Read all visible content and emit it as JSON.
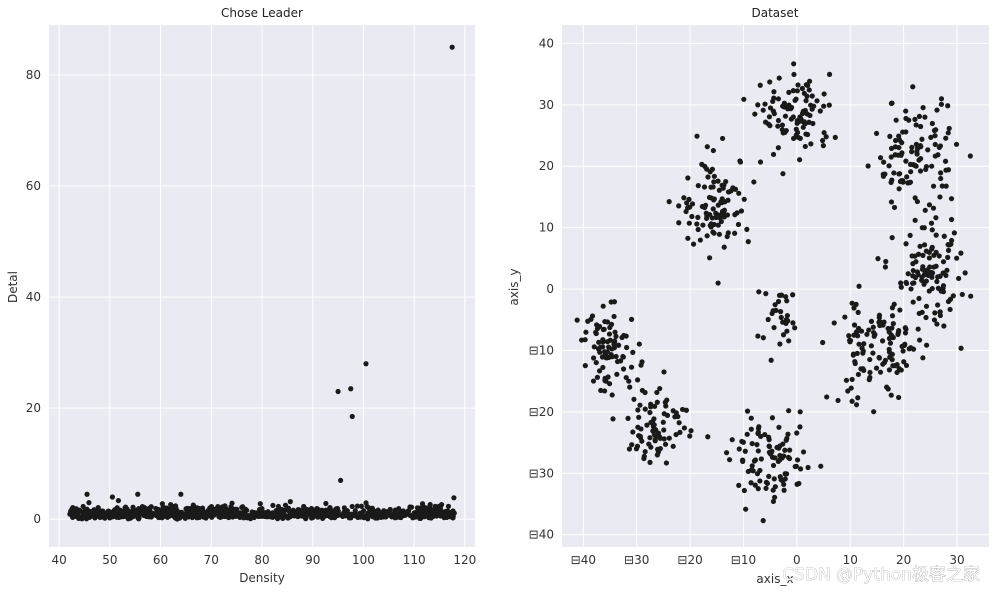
{
  "chart_data": [
    {
      "type": "scatter",
      "title": "Chose Leader",
      "xlabel": "Density",
      "ylabel": "Detal",
      "xlim": [
        38,
        122
      ],
      "ylim": [
        -5,
        89
      ],
      "xticks": [
        40,
        50,
        60,
        70,
        80,
        90,
        100,
        110,
        120
      ],
      "yticks": [
        0,
        20,
        40,
        60,
        80
      ],
      "xtick_labels": [
        "40",
        "50",
        "60",
        "70",
        "80",
        "90",
        "100",
        "110",
        "120"
      ],
      "ytick_labels": [
        "0",
        "20",
        "40",
        "60",
        "80"
      ],
      "grid": true,
      "outliers": [
        [
          117.5,
          85
        ],
        [
          100.5,
          28
        ],
        [
          97.5,
          23.5
        ],
        [
          95,
          23
        ],
        [
          97.8,
          18.5
        ],
        [
          95.5,
          7
        ],
        [
          64,
          4.5
        ],
        [
          45.5,
          4.5
        ],
        [
          55.5,
          4.5
        ],
        [
          50.5,
          4
        ]
      ],
      "cluster": {
        "x_range": [
          42,
          118
        ],
        "y_range": [
          0,
          4
        ],
        "count": 900
      }
    },
    {
      "type": "scatter",
      "title": "Dataset",
      "xlabel": "axis_x",
      "ylabel": "axis_y",
      "xlim": [
        -44,
        36
      ],
      "ylim": [
        -42,
        43
      ],
      "xticks": [
        -40,
        -30,
        -20,
        -10,
        0,
        10,
        20,
        30
      ],
      "yticks": [
        -40,
        -30,
        -20,
        -10,
        0,
        10,
        20,
        30,
        40
      ],
      "xtick_labels": [
        "⊟40",
        "⊟30",
        "⊟20",
        "⊟10",
        "0",
        "10",
        "20",
        "30"
      ],
      "ytick_labels": [
        "⊟40",
        "⊟30",
        "⊟20",
        "⊟10",
        "0",
        "10",
        "20",
        "30",
        "40"
      ],
      "grid": true,
      "clusters": [
        {
          "center": [
            -15,
            14
          ],
          "spread": [
            6,
            7
          ],
          "count": 110
        },
        {
          "center": [
            0,
            28
          ],
          "spread": [
            6,
            6
          ],
          "count": 100
        },
        {
          "center": [
            22,
            22
          ],
          "spread": [
            7,
            8
          ],
          "count": 110
        },
        {
          "center": [
            25,
            2
          ],
          "spread": [
            6,
            7
          ],
          "count": 110
        },
        {
          "center": [
            15,
            -10
          ],
          "spread": [
            8,
            8
          ],
          "count": 120
        },
        {
          "center": [
            -35,
            -10
          ],
          "spread": [
            5,
            6
          ],
          "count": 90
        },
        {
          "center": [
            -26,
            -22
          ],
          "spread": [
            5,
            6
          ],
          "count": 80
        },
        {
          "center": [
            -5,
            -28
          ],
          "spread": [
            7,
            6
          ],
          "count": 100
        },
        {
          "center": [
            -3,
            -5
          ],
          "spread": [
            4,
            5
          ],
          "count": 30
        }
      ]
    }
  ],
  "watermark": "CSDN @Python极客之家"
}
